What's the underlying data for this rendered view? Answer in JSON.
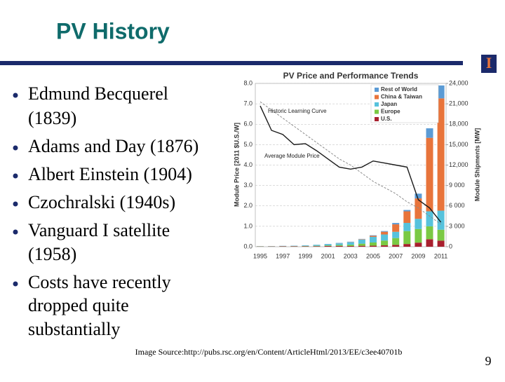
{
  "slide": {
    "title": "PV History",
    "bullets": [
      [
        "Edmund Becquerel",
        "(1839)"
      ],
      [
        "Adams and Day (1876)"
      ],
      [
        "Albert Einstein (1904)"
      ],
      [
        "Czochralski (1940s)"
      ],
      [
        "Vanguard I satellite",
        "(1958)"
      ],
      [
        "Costs have recently",
        "dropped quite",
        "substantially"
      ]
    ],
    "source": "Image Source:http://pubs.rsc.org/en/Content/ArticleHtml/2013/EE/c3ee40701b",
    "page_number": "9",
    "logo": "I"
  },
  "chart_data": {
    "type": "bar",
    "title": "PV Price and Performance Trends",
    "ylabel": "Module Price [2011 $U.S./W]",
    "y2label": "Module Shipments [MW]",
    "categories": [
      "1995",
      null,
      "1997",
      null,
      "1999",
      null,
      "2001",
      null,
      "2003",
      null,
      "2005",
      null,
      "2007",
      null,
      "2009",
      null,
      "2011"
    ],
    "ylim": [
      0,
      8
    ],
    "yticks": [
      {
        "value": 0,
        "label": "0.0"
      },
      {
        "value": 1,
        "label": "1.0"
      },
      {
        "value": 2,
        "label": "2.0"
      },
      {
        "value": 3,
        "label": "3.0"
      },
      {
        "value": 4,
        "label": "4.0"
      },
      {
        "value": 5,
        "label": "5.0"
      },
      {
        "value": 6,
        "label": "6.0"
      },
      {
        "value": 7,
        "label": "7.0"
      },
      {
        "value": 8,
        "label": "8.0"
      }
    ],
    "y2lim": [
      0,
      24000
    ],
    "y2ticks": [
      0,
      {
        "value": 3000,
        "label": "3 000"
      },
      {
        "value": 6000,
        "label": "6 000"
      },
      {
        "value": 9000,
        "label": "9 000"
      },
      {
        "value": 12000,
        "label": "12,000"
      },
      {
        "value": 15000,
        "label": "15,000"
      },
      {
        "value": 18000,
        "label": "18,000"
      },
      {
        "value": 21000,
        "label": "21,000"
      },
      {
        "value": 24000,
        "label": "24,000"
      }
    ],
    "grid": true,
    "series": [
      {
        "name": "Rest of World",
        "color": "#5b9bd5",
        "axis": "y2",
        "values": [
          9,
          10,
          10,
          15,
          18,
          20,
          35,
          45,
          60,
          40,
          80,
          100,
          200,
          200,
          700,
          1400,
          1900
        ]
      },
      {
        "name": "China & Taiwan",
        "color": "#e8743b",
        "axis": "y2",
        "values": [
          0.5,
          0.5,
          1,
          1,
          2,
          3,
          5,
          15,
          30,
          60,
          150,
          400,
          1100,
          1700,
          3000,
          10800,
          16500
        ]
      },
      {
        "name": "Japan",
        "color": "#56c2dc",
        "axis": "y2",
        "values": [
          16,
          21,
          35,
          49,
          80,
          130,
          170,
          250,
          360,
          600,
          830,
          900,
          920,
          1200,
          1500,
          2200,
          2800
        ]
      },
      {
        "name": "Europe",
        "color": "#7ac943",
        "axis": "y2",
        "values": [
          20,
          19,
          30,
          33,
          40,
          60,
          90,
          130,
          190,
          310,
          470,
          700,
          1000,
          1900,
          2000,
          1900,
          1600
        ]
      },
      {
        "name": "U.S.",
        "color": "#a8202e",
        "axis": "y2",
        "values": [
          35,
          39,
          51,
          54,
          60,
          75,
          100,
          120,
          100,
          140,
          150,
          200,
          270,
          400,
          600,
          1100,
          900
        ]
      }
    ],
    "lines": [
      {
        "name": "Historic Learning Curve",
        "color": "#8c8c8c",
        "dashed": true,
        "values": [
          7.1,
          6.7,
          6.3,
          5.9,
          5.5,
          5.1,
          4.7,
          4.3,
          4.0,
          3.6,
          3.2,
          2.9,
          2.6,
          2.2,
          1.9,
          1.5,
          1.1
        ]
      },
      {
        "name": "Average Module Price",
        "color": "#1a1a1a",
        "dashed": false,
        "values": [
          6.9,
          5.7,
          5.5,
          5.0,
          5.05,
          4.7,
          4.3,
          3.9,
          3.8,
          3.9,
          4.2,
          4.1,
          4.0,
          3.9,
          2.3,
          1.9,
          1.2
        ]
      }
    ]
  }
}
